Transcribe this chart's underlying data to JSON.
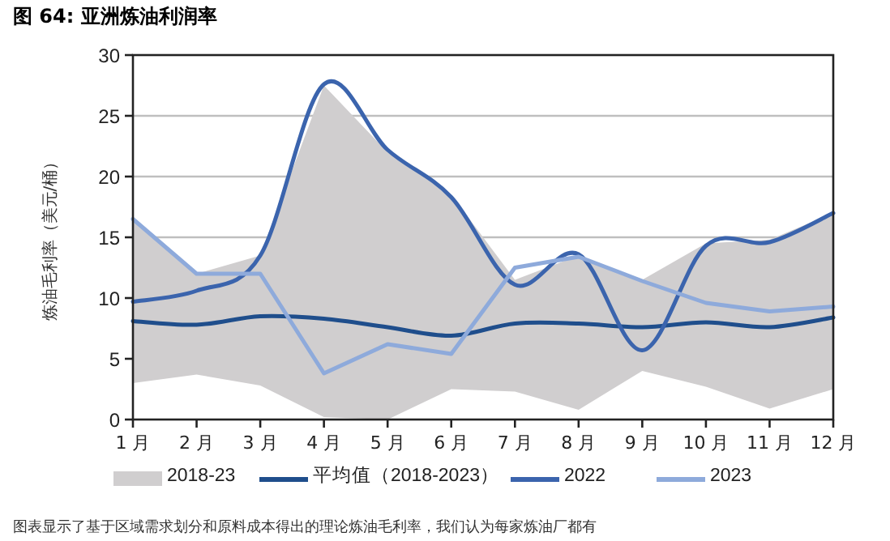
{
  "chart_data": {
    "type": "line",
    "title": "图 64:  亚洲炼油利润率",
    "ylabel": "炼油毛利率（美元/桶）",
    "categories": [
      "1 月",
      "2 月",
      "3 月",
      "4 月",
      "5 月",
      "6 月",
      "7 月",
      "8 月",
      "9 月",
      "10 月",
      "11 月",
      "12 月"
    ],
    "series": [
      {
        "name": "2018-23",
        "type": "area",
        "color": "#d0cecf",
        "values": [
          16.5,
          12.0,
          13.5,
          27.5,
          22.0,
          18.5,
          11.5,
          13.5,
          11.5,
          14.5,
          14.8,
          17.0
        ]
      },
      {
        "type": "area",
        "color": "#ffffff",
        "values": [
          3.0,
          3.7,
          2.8,
          0.2,
          0.0,
          2.5,
          2.3,
          0.8,
          4.0,
          2.7,
          0.9,
          2.5
        ]
      },
      {
        "name": "平均值（2018-2023）",
        "color": "#1f4e8c",
        "values": [
          8.1,
          7.8,
          8.5,
          8.3,
          7.6,
          6.9,
          7.9,
          7.9,
          7.6,
          8.0,
          7.6,
          8.4
        ]
      },
      {
        "name": "2022",
        "color": "#3b64ad",
        "values": [
          9.7,
          10.6,
          13.5,
          27.6,
          22.2,
          18.3,
          11.1,
          13.6,
          5.7,
          14.3,
          14.6,
          17.0
        ]
      },
      {
        "name": "2023",
        "color": "#8eaadb",
        "values": [
          16.5,
          12.0,
          12.0,
          3.8,
          6.2,
          5.4,
          12.5,
          13.4,
          11.4,
          9.6,
          8.9,
          9.3
        ]
      }
    ],
    "ylim": [
      0,
      30
    ],
    "yticks": [
      0,
      5,
      10,
      15,
      20,
      25,
      30
    ],
    "grid": "y",
    "legend": "bottom",
    "annotations": [
      "图表显示了基于区域需求划分和原料成本得出的理论炼油毛利率，我们认为每家炼油厂都有"
    ]
  }
}
